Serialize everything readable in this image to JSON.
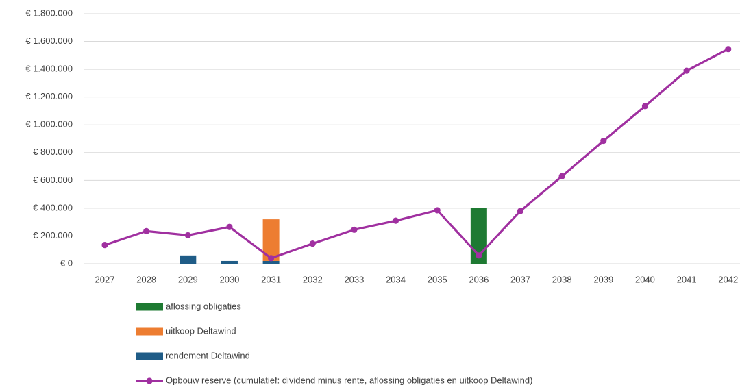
{
  "chart_data": {
    "type": "bar",
    "categories": [
      "2027",
      "2028",
      "2029",
      "2030",
      "2031",
      "2032",
      "2033",
      "2034",
      "2035",
      "2036",
      "2037",
      "2038",
      "2039",
      "2040",
      "2041",
      "2042"
    ],
    "ylim": [
      0,
      1800000
    ],
    "y_ticks": [
      0,
      200000,
      400000,
      600000,
      800000,
      1000000,
      1200000,
      1400000,
      1600000,
      1800000
    ],
    "y_tick_labels": [
      "€ 0",
      "€ 200.000",
      "€ 400.000",
      "€ 600.000",
      "€ 800.000",
      "€ 1.000.000",
      "€ 1.200.000",
      "€ 1.400.000",
      "€ 1.600.000",
      "€ 1.800.000"
    ],
    "grid": true,
    "legend_position": "bottom",
    "stacking": "stacked",
    "series": [
      {
        "name": "aflossing obligaties",
        "kind": "bar",
        "color": "#1e7a32",
        "values": [
          0,
          0,
          0,
          0,
          0,
          0,
          0,
          0,
          0,
          400000,
          0,
          0,
          0,
          0,
          0,
          0
        ]
      },
      {
        "name": "uitkoop Deltawind",
        "kind": "bar",
        "color": "#ed7d31",
        "values": [
          0,
          0,
          0,
          0,
          300000,
          0,
          0,
          0,
          0,
          0,
          0,
          0,
          0,
          0,
          0,
          0
        ]
      },
      {
        "name": "rendement Deltawind",
        "kind": "bar",
        "color": "#1f5c87",
        "values": [
          0,
          0,
          60000,
          20000,
          20000,
          0,
          0,
          0,
          0,
          0,
          0,
          0,
          0,
          0,
          0,
          0
        ]
      },
      {
        "name": "Opbouw reserve (cumulatief: dividend minus rente, aflossing obligaties en uitkoop Deltawind)",
        "kind": "line",
        "color": "#a030a0",
        "values": [
          135000,
          235000,
          205000,
          265000,
          40000,
          145000,
          245000,
          310000,
          385000,
          60000,
          380000,
          630000,
          885000,
          1135000,
          1390000,
          1545000
        ]
      }
    ]
  }
}
